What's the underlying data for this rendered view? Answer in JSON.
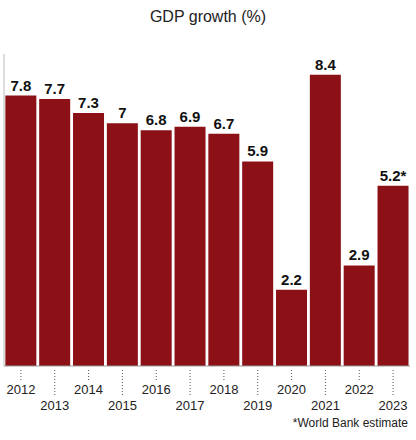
{
  "chart_data": {
    "type": "bar",
    "title": "GDP growth (%)",
    "categories": [
      "2012",
      "2013",
      "2014",
      "2015",
      "2016",
      "2017",
      "2018",
      "2019",
      "2020",
      "2021",
      "2022",
      "2023"
    ],
    "values": [
      7.8,
      7.7,
      7.3,
      7,
      6.8,
      6.9,
      6.7,
      5.9,
      2.2,
      8.4,
      2.9,
      5.2
    ],
    "value_labels": [
      "7.8",
      "7.7",
      "7.3",
      "7",
      "6.8",
      "6.9",
      "6.7",
      "5.9",
      "2.2",
      "8.4",
      "2.9",
      "5.2*"
    ],
    "color": "#8b1117",
    "ylim": [
      0,
      9
    ],
    "yticks": [
      0
    ],
    "grid": false,
    "data_labels": true,
    "tick_labels": "x",
    "note": "*World Bank estimate"
  }
}
